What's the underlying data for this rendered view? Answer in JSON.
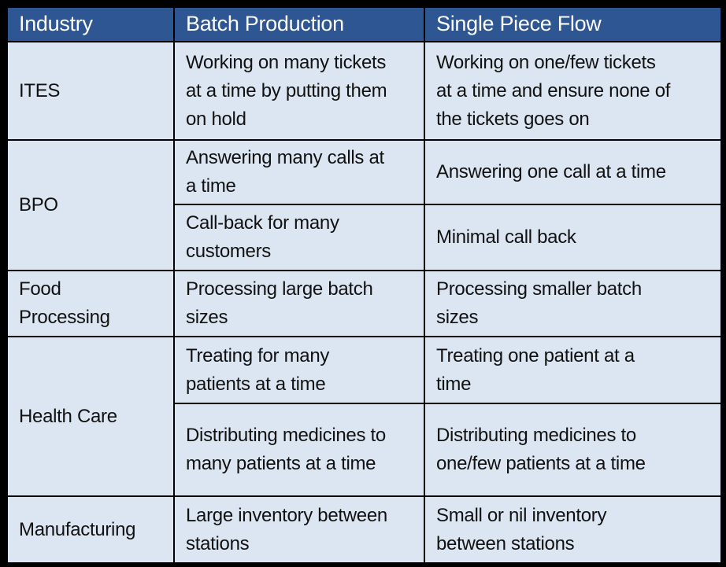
{
  "colors": {
    "header_bg": "#2E5693",
    "header_text": "#FFFFFF",
    "cell_bg": "#DCE6F2",
    "border": "#000000",
    "body_text": "#111111",
    "frame": "#000000"
  },
  "table": {
    "headers": [
      "Industry",
      "Batch Production",
      "Single Piece Flow"
    ],
    "groups": [
      {
        "industry": "ITES",
        "rows": [
          {
            "batch_production": "Working on many tickets at a time by putting them on hold",
            "single_piece_flow": "Working on one/few tickets at a time and ensure none of the tickets goes on"
          }
        ]
      },
      {
        "industry": "BPO",
        "rows": [
          {
            "batch_production": "Answering many calls at a time",
            "single_piece_flow": "Answering one call at a time"
          },
          {
            "batch_production": "Call-back for many customers",
            "single_piece_flow": "Minimal call back"
          }
        ]
      },
      {
        "industry": "Food Processing",
        "rows": [
          {
            "batch_production": "Processing large batch sizes",
            "single_piece_flow": "Processing smaller batch sizes"
          }
        ]
      },
      {
        "industry": "Health Care",
        "rows": [
          {
            "batch_production": "Treating for many patients at a time",
            "single_piece_flow": "Treating one patient at a time"
          },
          {
            "batch_production": "Distributing medicines to many patients at a time",
            "single_piece_flow": "Distributing medicines to one/few patients at a time"
          }
        ]
      },
      {
        "industry": "Manufacturing",
        "rows": [
          {
            "batch_production": "Large inventory between stations",
            "single_piece_flow": "Small or nil inventory between stations"
          }
        ]
      }
    ]
  }
}
